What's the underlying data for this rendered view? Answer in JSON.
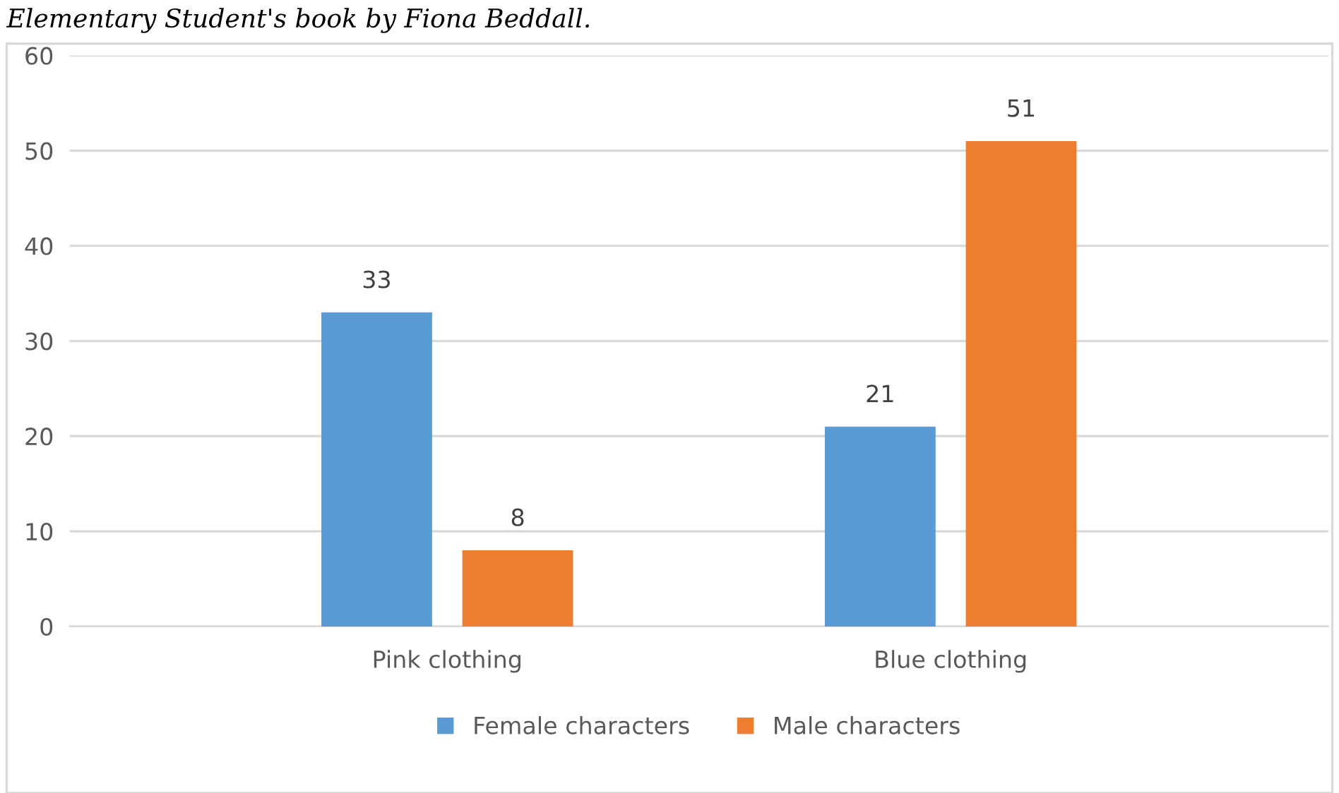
{
  "chart_data": {
    "type": "bar",
    "annotations": [
      "Elementary Student's book by Fiona Beddall."
    ],
    "categories": [
      "Pink clothing",
      "Blue clothing"
    ],
    "series": [
      {
        "name": "Female characters",
        "color": "#5b9bd5",
        "values": [
          33,
          21
        ]
      },
      {
        "name": "Male characters",
        "color": "#ed7d31",
        "values": [
          8,
          51
        ]
      }
    ],
    "ylim": [
      0,
      60
    ],
    "yticks": [
      0,
      10,
      20,
      30,
      40,
      50,
      60
    ],
    "grid": "y",
    "legend": "bottom",
    "data_labels": true
  }
}
